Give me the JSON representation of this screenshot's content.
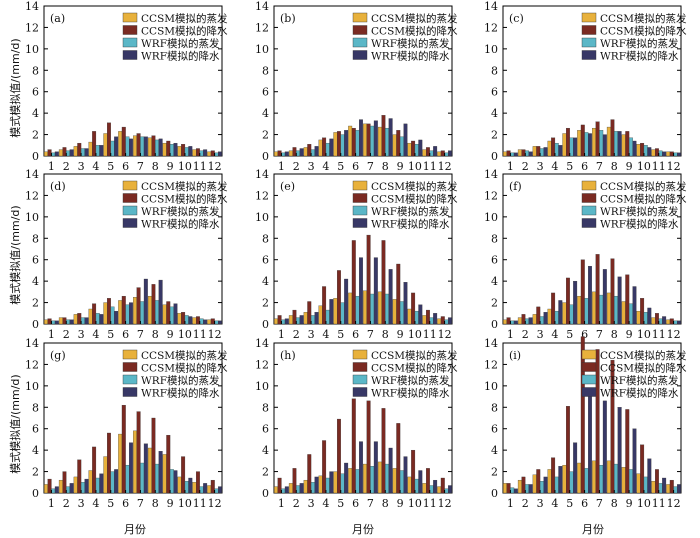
{
  "figure": {
    "y_label": "模式模拟值/(mm/d)",
    "x_label": "月份"
  },
  "legend": {
    "colors": [
      "#e8b13c",
      "#7a2a22",
      "#5bb7c7",
      "#383866"
    ]
  },
  "chart_data": [
    {
      "type": "bar",
      "panel_label": "(a)",
      "categories": [
        "1",
        "2",
        "3",
        "4",
        "5",
        "6",
        "7",
        "8",
        "9",
        "10",
        "11",
        "12"
      ],
      "ylim": [
        0,
        14
      ],
      "yticks": [
        0,
        2,
        4,
        6,
        8,
        10,
        12,
        14
      ],
      "grid": false,
      "legend_position": "top-right",
      "series": [
        {
          "name": "CCSM模拟的蒸发",
          "values": [
            0.4,
            0.6,
            0.9,
            1.3,
            2.1,
            2.3,
            1.9,
            1.7,
            1.2,
            0.9,
            0.6,
            0.4
          ]
        },
        {
          "name": "CCSM模拟的降水",
          "values": [
            0.6,
            0.8,
            1.2,
            2.3,
            3.1,
            2.7,
            2.1,
            1.9,
            1.4,
            1.1,
            0.7,
            0.5
          ]
        },
        {
          "name": "WRF模拟的蒸发",
          "values": [
            0.3,
            0.5,
            0.7,
            1.0,
            1.4,
            1.8,
            1.8,
            1.5,
            1.1,
            0.8,
            0.5,
            0.3
          ]
        },
        {
          "name": "WRF模拟的降水",
          "values": [
            0.4,
            0.6,
            0.7,
            1.0,
            1.8,
            1.6,
            1.8,
            1.6,
            1.2,
            0.9,
            0.6,
            0.4
          ]
        }
      ]
    },
    {
      "type": "bar",
      "panel_label": "(b)",
      "categories": [
        "1",
        "2",
        "3",
        "4",
        "5",
        "6",
        "7",
        "8",
        "9",
        "10",
        "11",
        "12"
      ],
      "ylim": [
        0,
        14
      ],
      "yticks": [
        0,
        2,
        4,
        6,
        8,
        10,
        12,
        14
      ],
      "grid": false,
      "legend_position": "top-right",
      "series": [
        {
          "name": "CCSM模拟的蒸发",
          "values": [
            0.4,
            0.5,
            0.8,
            1.5,
            2.2,
            2.8,
            3.0,
            2.7,
            2.0,
            1.2,
            0.6,
            0.4
          ]
        },
        {
          "name": "CCSM模拟的降水",
          "values": [
            0.5,
            0.8,
            1.1,
            1.7,
            2.3,
            2.6,
            3.0,
            3.8,
            2.4,
            1.4,
            0.8,
            0.5
          ]
        },
        {
          "name": "WRF模拟的蒸发",
          "values": [
            0.3,
            0.5,
            0.6,
            1.2,
            2.0,
            2.4,
            2.8,
            2.6,
            1.8,
            1.1,
            0.5,
            0.3
          ]
        },
        {
          "name": "WRF模拟的降水",
          "values": [
            0.4,
            0.7,
            0.9,
            1.6,
            2.4,
            3.4,
            3.3,
            3.5,
            3.0,
            1.5,
            0.9,
            0.5
          ]
        }
      ]
    },
    {
      "type": "bar",
      "panel_label": "(c)",
      "categories": [
        "1",
        "2",
        "3",
        "4",
        "5",
        "6",
        "7",
        "8",
        "9",
        "10",
        "11",
        "12"
      ],
      "ylim": [
        0,
        14
      ],
      "yticks": [
        0,
        2,
        4,
        6,
        8,
        10,
        12,
        14
      ],
      "grid": false,
      "legend_position": "top-right",
      "series": [
        {
          "name": "CCSM模拟的蒸发",
          "values": [
            0.4,
            0.6,
            0.9,
            1.4,
            2.1,
            2.4,
            2.6,
            2.7,
            2.0,
            1.1,
            0.6,
            0.4
          ]
        },
        {
          "name": "CCSM模拟的降水",
          "values": [
            0.5,
            0.6,
            0.9,
            1.7,
            2.6,
            2.9,
            3.2,
            3.4,
            2.3,
            1.2,
            0.7,
            0.4
          ]
        },
        {
          "name": "WRF模拟的蒸发",
          "values": [
            0.3,
            0.5,
            0.7,
            1.2,
            1.7,
            2.2,
            2.4,
            2.3,
            1.7,
            1.0,
            0.5,
            0.3
          ]
        },
        {
          "name": "WRF模拟的降水",
          "values": [
            0.3,
            0.4,
            0.8,
            1.0,
            1.7,
            2.1,
            2.0,
            2.3,
            1.4,
            0.8,
            0.4,
            0.3
          ]
        }
      ]
    },
    {
      "type": "bar",
      "panel_label": "(d)",
      "categories": [
        "1",
        "2",
        "3",
        "4",
        "5",
        "6",
        "7",
        "8",
        "9",
        "10",
        "11",
        "12"
      ],
      "ylim": [
        0,
        14
      ],
      "yticks": [
        0,
        2,
        4,
        6,
        8,
        10,
        12,
        14
      ],
      "grid": false,
      "legend_position": "top-right",
      "series": [
        {
          "name": "CCSM模拟的蒸发",
          "values": [
            0.4,
            0.6,
            0.9,
            1.4,
            2.0,
            2.2,
            2.5,
            2.6,
            1.8,
            1.0,
            0.6,
            0.4
          ]
        },
        {
          "name": "CCSM模拟的降水",
          "values": [
            0.5,
            0.6,
            1.0,
            1.9,
            2.4,
            2.6,
            3.4,
            3.7,
            2.1,
            1.1,
            0.7,
            0.5
          ]
        },
        {
          "name": "WRF模拟的蒸发",
          "values": [
            0.3,
            0.4,
            0.6,
            1.0,
            1.6,
            1.8,
            2.1,
            2.2,
            1.6,
            0.8,
            0.5,
            0.3
          ]
        },
        {
          "name": "WRF模拟的降水",
          "values": [
            0.3,
            0.4,
            0.6,
            0.9,
            1.2,
            2.0,
            4.2,
            4.1,
            1.9,
            0.7,
            0.4,
            0.3
          ]
        }
      ]
    },
    {
      "type": "bar",
      "panel_label": "(e)",
      "categories": [
        "1",
        "2",
        "3",
        "4",
        "5",
        "6",
        "7",
        "8",
        "9",
        "10",
        "11",
        "12"
      ],
      "ylim": [
        0,
        14
      ],
      "yticks": [
        0,
        2,
        4,
        6,
        8,
        10,
        12,
        14
      ],
      "grid": false,
      "legend_position": "top-right",
      "series": [
        {
          "name": "CCSM模拟的蒸发",
          "values": [
            0.5,
            0.8,
            1.1,
            1.7,
            2.4,
            2.9,
            3.1,
            3.0,
            2.3,
            1.4,
            0.8,
            0.5
          ]
        },
        {
          "name": "CCSM模拟的降水",
          "values": [
            0.8,
            1.3,
            2.1,
            3.5,
            5.0,
            7.8,
            8.3,
            7.8,
            5.6,
            2.9,
            1.3,
            0.7
          ]
        },
        {
          "name": "WRF模拟的蒸发",
          "values": [
            0.4,
            0.6,
            0.8,
            1.3,
            2.0,
            2.6,
            2.8,
            2.8,
            2.1,
            1.2,
            0.6,
            0.4
          ]
        },
        {
          "name": "WRF模拟的降水",
          "values": [
            0.5,
            0.8,
            1.1,
            2.3,
            4.2,
            6.2,
            6.2,
            5.1,
            3.9,
            1.8,
            1.0,
            0.6
          ]
        }
      ]
    },
    {
      "type": "bar",
      "panel_label": "(f)",
      "categories": [
        "1",
        "2",
        "3",
        "4",
        "5",
        "6",
        "7",
        "8",
        "9",
        "10",
        "11",
        "12"
      ],
      "ylim": [
        0,
        14
      ],
      "yticks": [
        0,
        2,
        4,
        6,
        8,
        10,
        12,
        14
      ],
      "grid": false,
      "legend_position": "top-right",
      "series": [
        {
          "name": "CCSM模拟的蒸发",
          "values": [
            0.4,
            0.6,
            0.9,
            1.4,
            2.0,
            2.6,
            3.0,
            2.9,
            2.1,
            1.2,
            0.6,
            0.4
          ]
        },
        {
          "name": "CCSM模拟的降水",
          "values": [
            0.6,
            0.9,
            1.6,
            2.9,
            4.3,
            6.0,
            6.5,
            6.1,
            4.6,
            2.4,
            1.0,
            0.5
          ]
        },
        {
          "name": "WRF模拟的蒸发",
          "values": [
            0.3,
            0.5,
            0.7,
            1.2,
            1.8,
            2.4,
            2.7,
            2.6,
            1.9,
            1.1,
            0.5,
            0.3
          ]
        },
        {
          "name": "WRF模拟的降水",
          "values": [
            0.3,
            0.6,
            1.1,
            2.2,
            4.0,
            5.4,
            5.1,
            4.4,
            3.5,
            1.5,
            0.7,
            0.3
          ]
        }
      ]
    },
    {
      "type": "bar",
      "panel_label": "(g)",
      "categories": [
        "1",
        "2",
        "3",
        "4",
        "5",
        "6",
        "7",
        "8",
        "9",
        "10",
        "11",
        "12"
      ],
      "ylim": [
        0,
        14
      ],
      "yticks": [
        0,
        2,
        4,
        6,
        8,
        10,
        12,
        14
      ],
      "grid": false,
      "legend_position": "top-right",
      "series": [
        {
          "name": "CCSM模拟的蒸发",
          "values": [
            0.8,
            1.2,
            1.5,
            2.1,
            3.4,
            5.5,
            5.8,
            4.2,
            3.6,
            1.5,
            1.0,
            0.7
          ]
        },
        {
          "name": "CCSM模拟的降水",
          "values": [
            1.3,
            2.0,
            3.1,
            4.3,
            5.6,
            8.2,
            7.6,
            7.0,
            5.4,
            3.4,
            2.0,
            1.2
          ]
        },
        {
          "name": "WRF模拟的蒸发",
          "values": [
            0.4,
            0.6,
            1.0,
            1.4,
            2.0,
            2.6,
            2.8,
            2.7,
            2.2,
            1.1,
            0.6,
            0.4
          ]
        },
        {
          "name": "WRF模拟的降水",
          "values": [
            0.6,
            0.9,
            1.3,
            1.8,
            2.2,
            4.7,
            4.6,
            3.9,
            2.1,
            1.4,
            0.9,
            0.6
          ]
        }
      ]
    },
    {
      "type": "bar",
      "panel_label": "(h)",
      "categories": [
        "1",
        "2",
        "3",
        "4",
        "5",
        "6",
        "7",
        "8",
        "9",
        "10",
        "11",
        "12"
      ],
      "ylim": [
        0,
        14
      ],
      "yticks": [
        0,
        2,
        4,
        6,
        8,
        10,
        12,
        14
      ],
      "grid": false,
      "legend_position": "top-right",
      "series": [
        {
          "name": "CCSM模拟的蒸发",
          "values": [
            0.6,
            0.9,
            1.2,
            1.6,
            2.0,
            2.3,
            2.7,
            2.9,
            2.3,
            1.5,
            0.9,
            0.6
          ]
        },
        {
          "name": "CCSM模拟的降水",
          "values": [
            1.4,
            2.3,
            3.6,
            4.9,
            6.9,
            8.8,
            8.6,
            7.9,
            6.5,
            4.0,
            2.3,
            1.4
          ]
        },
        {
          "name": "WRF模拟的蒸发",
          "values": [
            0.4,
            0.7,
            1.0,
            1.4,
            1.8,
            2.2,
            2.5,
            2.7,
            2.1,
            1.3,
            0.7,
            0.4
          ]
        },
        {
          "name": "WRF模拟的降水",
          "values": [
            0.6,
            0.9,
            1.5,
            2.0,
            2.8,
            4.8,
            4.8,
            4.2,
            3.4,
            2.1,
            1.2,
            0.7
          ]
        }
      ]
    },
    {
      "type": "bar",
      "panel_label": "(i)",
      "categories": [
        "1",
        "2",
        "3",
        "4",
        "5",
        "6",
        "7",
        "8",
        "9",
        "10",
        "11",
        "12"
      ],
      "ylim": [
        0,
        14
      ],
      "yticks": [
        0,
        2,
        4,
        6,
        8,
        10,
        12,
        14
      ],
      "grid": false,
      "legend_position": "top-right",
      "series": [
        {
          "name": "CCSM模拟的蒸发",
          "values": [
            0.9,
            1.2,
            1.7,
            2.2,
            2.6,
            2.8,
            3.0,
            3.0,
            2.4,
            1.8,
            1.1,
            0.8
          ]
        },
        {
          "name": "CCSM模拟的降水",
          "values": [
            0.9,
            1.5,
            2.2,
            3.3,
            8.1,
            14.6,
            13.4,
            12.4,
            7.8,
            4.5,
            2.2,
            1.2
          ]
        },
        {
          "name": "WRF模拟的蒸发",
          "values": [
            0.5,
            0.8,
            1.1,
            1.5,
            2.0,
            2.3,
            2.6,
            2.7,
            2.2,
            1.5,
            0.9,
            0.6
          ]
        },
        {
          "name": "WRF模拟的降水",
          "values": [
            0.4,
            0.8,
            1.5,
            2.5,
            4.7,
            9.3,
            8.6,
            8.0,
            6.0,
            3.2,
            1.4,
            0.8
          ]
        }
      ]
    }
  ]
}
